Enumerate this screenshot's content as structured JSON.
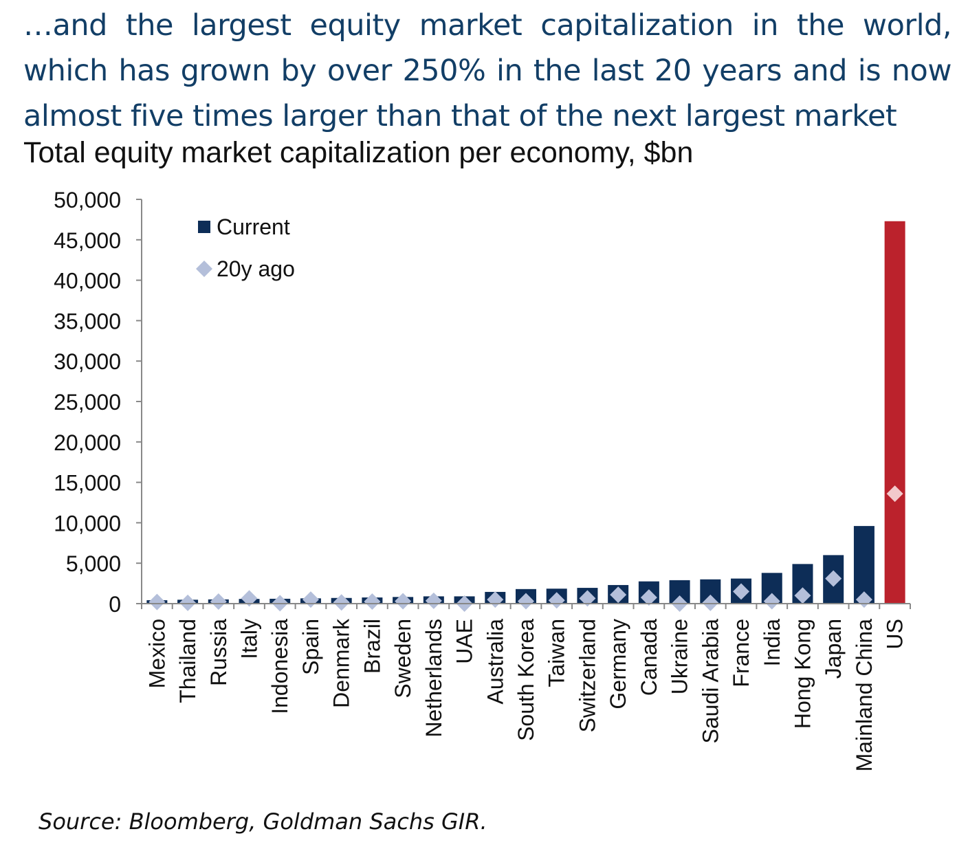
{
  "headline": "…and the largest equity market capitalization in the world, which has grown by over 250% in the last 20 years and is now almost five times larger than that of the next largest market",
  "subtitle": "Total equity market capitalization per economy, $bn",
  "source": "Source: Bloomberg, Goldman Sachs GIR.",
  "colors": {
    "headline": "#123e66",
    "current": "#0d2d57",
    "highlight": "#bb222c",
    "twenty_ago": "#b4bfda",
    "twenty_ago_highlight": "#f2c9cb",
    "axis": "#888888"
  },
  "chart_data": {
    "type": "bar",
    "ylim": [
      0,
      50000
    ],
    "yticks": [
      0,
      5000,
      10000,
      15000,
      20000,
      25000,
      30000,
      35000,
      40000,
      45000,
      50000
    ],
    "ytick_labels": [
      "0",
      "5,000",
      "10,000",
      "15,000",
      "20,000",
      "25,000",
      "30,000",
      "35,000",
      "40,000",
      "45,000",
      "50,000"
    ],
    "legend_position": "top-left",
    "highlight_category": "US",
    "categories": [
      "Mexico",
      "Thailand",
      "Russia",
      "Italy",
      "Indonesia",
      "Spain",
      "Denmark",
      "Brazil",
      "Sweden",
      "Netherlands",
      "UAE",
      "Australia",
      "South Korea",
      "Taiwan",
      "Switzerland",
      "Germany",
      "Canada",
      "Ukraine",
      "Saudi Arabia",
      "France",
      "India",
      "Hong Kong",
      "Japan",
      "Mainland China",
      "US"
    ],
    "series": [
      {
        "name": "Current",
        "marker": "bar",
        "values": [
          420,
          480,
          520,
          580,
          600,
          650,
          700,
          760,
          820,
          900,
          900,
          1450,
          1800,
          1850,
          1950,
          2300,
          2750,
          2900,
          3000,
          3100,
          3800,
          4900,
          6000,
          9600,
          47300
        ]
      },
      {
        "name": "20y ago",
        "marker": "diamond",
        "values": [
          200,
          100,
          250,
          650,
          50,
          500,
          150,
          250,
          300,
          350,
          0,
          500,
          300,
          400,
          650,
          1100,
          750,
          0,
          100,
          1500,
          300,
          1000,
          3100,
          500,
          13600
        ]
      }
    ]
  }
}
